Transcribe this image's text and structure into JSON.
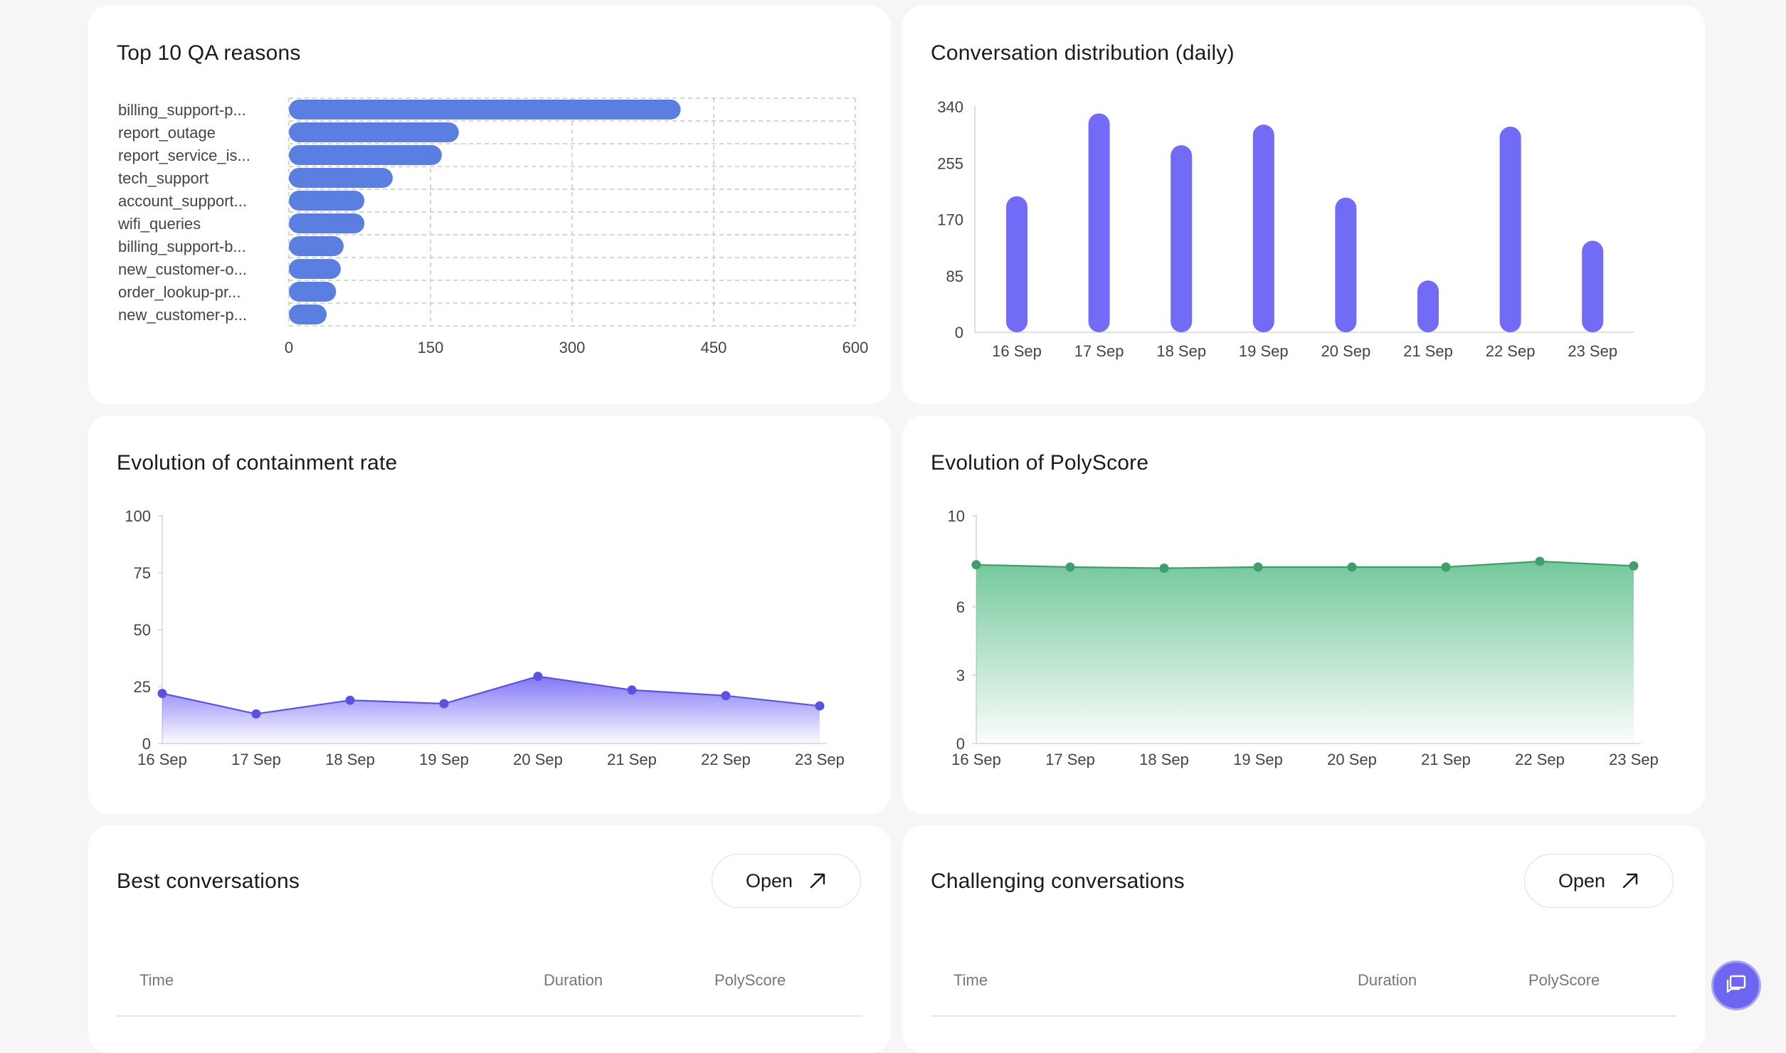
{
  "cards": {
    "top_reasons": {
      "title": "Top 10 QA reasons"
    },
    "distribution": {
      "title": "Conversation distribution (daily)"
    },
    "containment": {
      "title": "Evolution of containment rate"
    },
    "polyscore": {
      "title": "Evolution of PolyScore"
    },
    "best": {
      "title": "Best conversations",
      "open_label": "Open",
      "columns": [
        "Time",
        "Duration",
        "PolyScore"
      ]
    },
    "challenging": {
      "title": "Challenging conversations",
      "open_label": "Open",
      "columns": [
        "Time",
        "Duration",
        "PolyScore"
      ]
    }
  },
  "colors": {
    "bar_blue": "#5b7fe0",
    "bar_purple": "#716bf5",
    "line_purple": "#5a52e0",
    "area_green": "#6cc596",
    "line_green": "#3f9e6a",
    "fab": "#6e66f0"
  },
  "icons": {
    "open": "arrow-up-right-icon",
    "chat": "chat-bubbles-icon"
  },
  "chart_data": [
    {
      "id": "qa_reasons",
      "type": "bar",
      "orientation": "horizontal",
      "title": "Top 10 QA reasons",
      "categories": [
        "billing_support-p...",
        "report_outage",
        "report_service_is...",
        "tech_support",
        "account_support...",
        "wifi_queries",
        "billing_support-b...",
        "new_customer-o...",
        "order_lookup-pr...",
        "new_customer-p..."
      ],
      "values": [
        415,
        180,
        162,
        110,
        80,
        80,
        58,
        55,
        50,
        40
      ],
      "xlim": [
        0,
        600
      ],
      "xticks": [
        "0",
        "150",
        "300",
        "450",
        "600"
      ],
      "grid": true
    },
    {
      "id": "daily_distribution",
      "type": "bar",
      "title": "Conversation distribution (daily)",
      "categories": [
        "16 Sep",
        "17 Sep",
        "18 Sep",
        "19 Sep",
        "20 Sep",
        "21 Sep",
        "22 Sep",
        "23 Sep"
      ],
      "values": [
        205,
        330,
        282,
        313,
        203,
        78,
        310,
        138
      ],
      "ylim": [
        0,
        340
      ],
      "yticks": [
        "0",
        "85",
        "170",
        "255",
        "340"
      ]
    },
    {
      "id": "containment_rate",
      "type": "area",
      "title": "Evolution of containment rate",
      "categories": [
        "16 Sep",
        "17 Sep",
        "18 Sep",
        "19 Sep",
        "20 Sep",
        "21 Sep",
        "22 Sep",
        "23 Sep"
      ],
      "values": [
        22,
        13,
        19,
        17.5,
        29.5,
        23.5,
        21,
        16.5
      ],
      "ylim": [
        0,
        100
      ],
      "yticks": [
        "0",
        "25",
        "50",
        "75",
        "100"
      ]
    },
    {
      "id": "polyscore",
      "type": "area",
      "title": "Evolution of PolyScore",
      "categories": [
        "16 Sep",
        "17 Sep",
        "18 Sep",
        "19 Sep",
        "20 Sep",
        "21 Sep",
        "22 Sep",
        "23 Sep"
      ],
      "values": [
        7.85,
        7.75,
        7.7,
        7.75,
        7.75,
        7.75,
        8.0,
        7.8
      ],
      "ylim": [
        0,
        10
      ],
      "yticks": [
        "0",
        "3",
        "6",
        "10"
      ],
      "ytick_values": [
        0,
        3,
        6,
        10
      ]
    }
  ]
}
